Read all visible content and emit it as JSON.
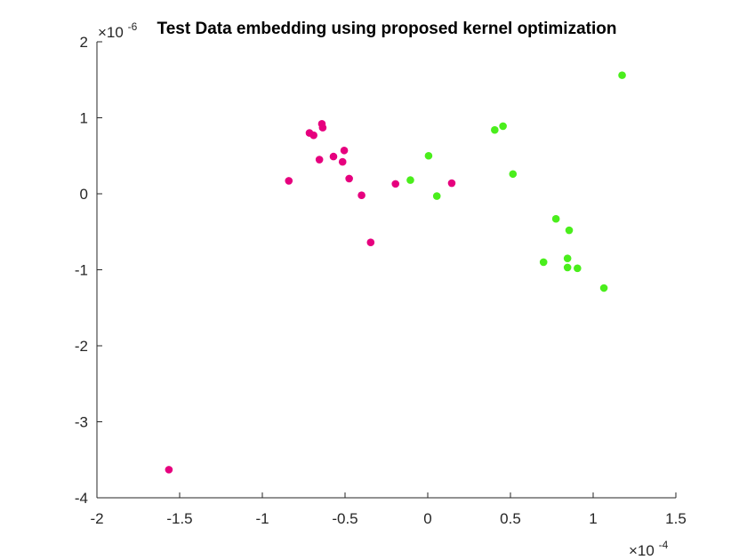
{
  "chart_data": {
    "type": "scatter",
    "title": "Test Data embedding using proposed kernel optimization",
    "xlabel": "",
    "ylabel": "",
    "xlim": [
      -2,
      1.5
    ],
    "ylim": [
      -4,
      2
    ],
    "x_multiplier": {
      "base": "×10",
      "exponent": "-4"
    },
    "y_multiplier": {
      "base": "×10",
      "exponent": "-6"
    },
    "x_ticks": [
      -2,
      -1.5,
      -1,
      -0.5,
      0,
      0.5,
      1,
      1.5
    ],
    "x_tick_labels": [
      "-2",
      "-1.5",
      "-1",
      "-0.5",
      "0",
      "0.5",
      "1",
      "1.5"
    ],
    "y_ticks": [
      -4,
      -3,
      -2,
      -1,
      0,
      1,
      2
    ],
    "y_tick_labels": [
      "-4",
      "-3",
      "-2",
      "-1",
      "0",
      "1",
      "2"
    ],
    "grid": false,
    "series": [
      {
        "color": "#e6007e",
        "points": [
          [
            -1.565,
            -3.63
          ],
          [
            -0.84,
            0.17
          ],
          [
            -0.715,
            0.8
          ],
          [
            -0.69,
            0.77
          ],
          [
            -0.655,
            0.45
          ],
          [
            -0.64,
            0.92
          ],
          [
            -0.635,
            0.87
          ],
          [
            -0.57,
            0.49
          ],
          [
            -0.515,
            0.42
          ],
          [
            -0.505,
            0.57
          ],
          [
            -0.475,
            0.2
          ],
          [
            -0.4,
            -0.02
          ],
          [
            -0.345,
            -0.64
          ],
          [
            -0.195,
            0.13
          ],
          [
            0.145,
            0.14
          ]
        ]
      },
      {
        "color": "#4aee1c",
        "points": [
          [
            -0.105,
            0.18
          ],
          [
            0.005,
            0.5
          ],
          [
            0.055,
            -0.03
          ],
          [
            0.405,
            0.84
          ],
          [
            0.455,
            0.89
          ],
          [
            0.515,
            0.26
          ],
          [
            0.7,
            -0.9
          ],
          [
            0.775,
            -0.33
          ],
          [
            0.845,
            -0.85
          ],
          [
            0.845,
            -0.97
          ],
          [
            0.855,
            -0.48
          ],
          [
            0.905,
            -0.98
          ],
          [
            1.065,
            -1.24
          ],
          [
            1.175,
            1.56
          ]
        ]
      }
    ]
  }
}
